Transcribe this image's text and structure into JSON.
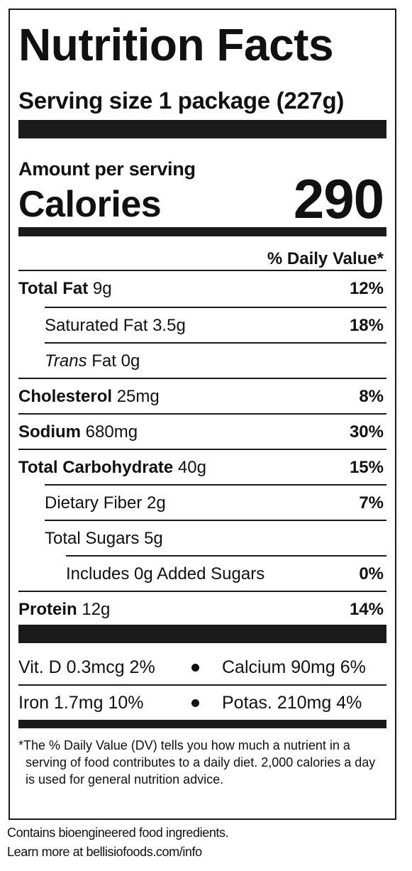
{
  "title": "Nutrition Facts",
  "serving": "Serving size 1 package (227g)",
  "amount_per_serving": "Amount per serving",
  "calories_label": "Calories",
  "calories_value": "290",
  "dv_header": "% Daily Value*",
  "nutrients": [
    {
      "name_bold": "Total Fat",
      "amount": " 9g",
      "pct": "12%"
    },
    {
      "name": "Saturated Fat 3.5g",
      "pct": "18%"
    },
    {
      "name_italic": "Trans",
      "amount": " Fat 0g",
      "pct": ""
    },
    {
      "name_bold": "Cholesterol",
      "amount": " 25mg",
      "pct": "8%"
    },
    {
      "name_bold": "Sodium",
      "amount": " 680mg",
      "pct": "30%"
    },
    {
      "name_bold": "Total Carbohydrate",
      "amount": " 40g",
      "pct": "15%"
    },
    {
      "name": "Dietary Fiber 2g",
      "pct": "7%"
    },
    {
      "name": "Total Sugars 5g",
      "pct": ""
    },
    {
      "name": "Includes 0g Added Sugars",
      "pct": "0%"
    },
    {
      "name_bold": "Protein",
      "amount": " 12g",
      "pct": "14%"
    }
  ],
  "vitamins": [
    {
      "left": "Vit. D 0.3mcg 2%",
      "right": "Calcium 90mg 6%"
    },
    {
      "left": "Iron 1.7mg 10%",
      "right": "Potas. 210mg 4%"
    }
  ],
  "footnote": "*The % Daily Value (DV) tells you how much a nutrient in a serving of food contributes to a daily diet. 2,000 calories a day is used for general nutrition advice.",
  "contains_line1": "Contains bioengineered food ingredients.",
  "contains_line2": "Learn more at bellisiofoods.com/info"
}
